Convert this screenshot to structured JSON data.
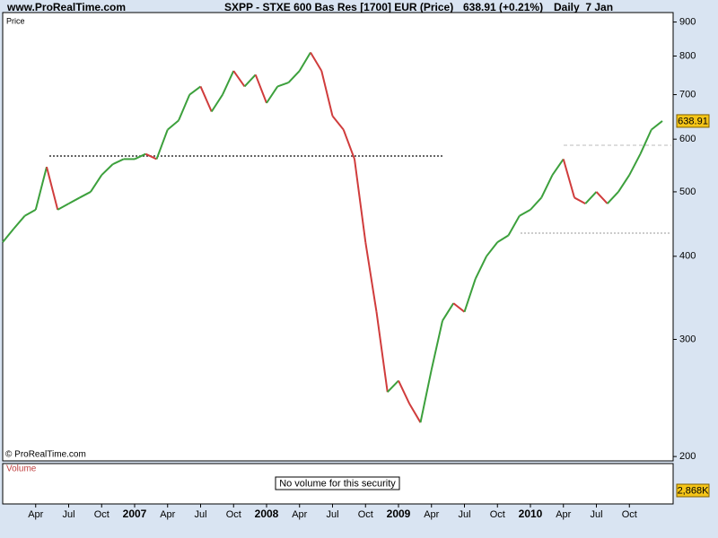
{
  "chart_data": {
    "type": "line",
    "source": "www.ProRealTime.com",
    "title": "SXPP - STXE 600 Bas Res [1700] EUR (Price)",
    "change": "638.91 (+0.21%)",
    "period": "Daily  7 Jan",
    "y_label": "Price",
    "copyright": "© ProRealTime.com",
    "volume_label": "Volume",
    "volume_note": "No volume for this security",
    "volume_value": "2,868K",
    "yscale": "log",
    "ylim": [
      197,
      930
    ],
    "yticks": [
      200,
      300,
      400,
      500,
      600,
      700,
      800,
      900
    ],
    "up_color": "#3ca03c",
    "down_color": "#d03c3c",
    "categories": [
      null,
      null,
      null,
      "Apr",
      null,
      null,
      "Jul",
      null,
      null,
      "Oct",
      null,
      null,
      "2007",
      null,
      null,
      "Apr",
      null,
      null,
      "Jul",
      null,
      null,
      "Oct",
      null,
      null,
      "2008",
      null,
      null,
      "Apr",
      null,
      null,
      "Jul",
      null,
      null,
      "Oct",
      null,
      null,
      "2009",
      null,
      null,
      "Apr",
      null,
      null,
      "Jul",
      null,
      null,
      "Oct",
      null,
      null,
      "2010",
      null,
      null,
      "Apr",
      null,
      null,
      "Jul",
      null,
      null,
      "Oct",
      null,
      null,
      null
    ],
    "series": [
      {
        "name": "Price",
        "values": [
          420,
          440,
          460,
          470,
          545,
          470,
          480,
          490,
          500,
          530,
          550,
          560,
          560,
          570,
          560,
          620,
          640,
          700,
          720,
          660,
          700,
          760,
          720,
          750,
          680,
          720,
          730,
          760,
          810,
          760,
          650,
          620,
          560,
          420,
          330,
          250,
          260,
          240,
          225,
          270,
          320,
          340,
          330,
          370,
          400,
          420,
          430,
          460,
          470,
          490,
          530,
          560,
          490,
          480,
          500,
          480,
          500,
          530,
          570,
          620,
          638.91
        ]
      }
    ]
  }
}
